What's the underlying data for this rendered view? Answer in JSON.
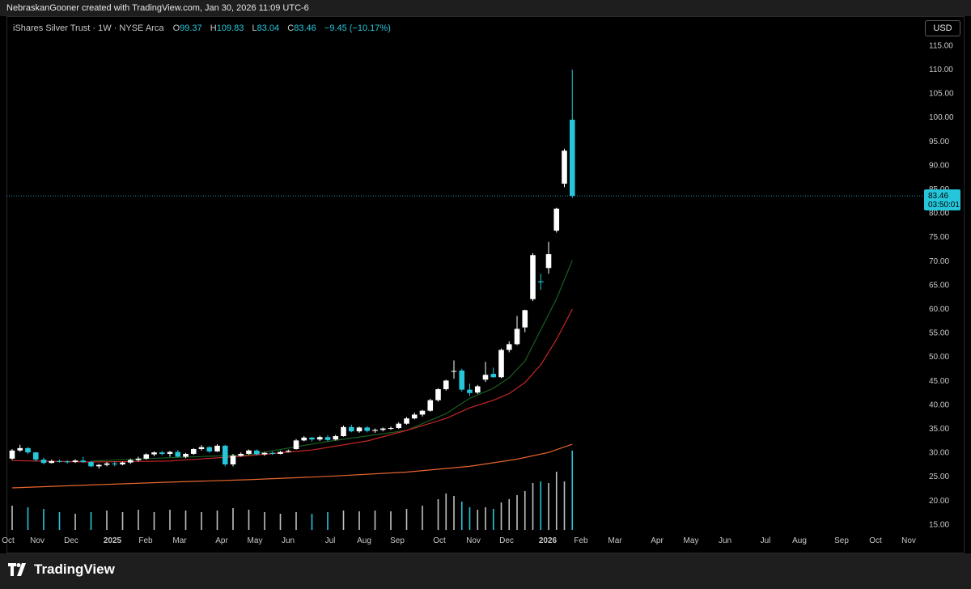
{
  "header": {
    "attribution": "NebraskanGooner created with TradingView.com, Jan 30, 2026 11:09 UTC-6"
  },
  "legend": {
    "symbol": "iShares Silver Trust · 1W · NYSE Arca",
    "open_label": "O",
    "open": "99.37",
    "high_label": "H",
    "high": "109.83",
    "low_label": "L",
    "low": "83.04",
    "close_label": "C",
    "close": "83.46",
    "change": "−9.45 (−10.17%)"
  },
  "currency": "USD",
  "price_tag": {
    "price": "83.46",
    "countdown": "03:50:01"
  },
  "brand": {
    "name": "TradingView"
  },
  "colors": {
    "up_candle": "#ffffff",
    "down_candle": "#26c6da",
    "ma_green": "#1b5e20",
    "ma_red": "#c62828",
    "ma_orange": "#e8652d",
    "volume": "#26c6da",
    "volume_up": "#ffffff"
  },
  "chart_data": {
    "type": "candlestick",
    "title": "iShares Silver Trust · 1W · NYSE Arca",
    "x_tick_labels": [
      "Oct",
      "Nov",
      "Dec",
      "2025",
      "Feb",
      "Mar",
      "Apr",
      "May",
      "Jun",
      "Jul",
      "Aug",
      "Sep",
      "Oct",
      "Nov",
      "Dec",
      "2026",
      "Feb",
      "Mar",
      "Apr",
      "May",
      "Jun",
      "Jul",
      "Aug",
      "Sep",
      "Oct",
      "Nov"
    ],
    "y_tick_labels": [
      "15.00",
      "20.00",
      "25.00",
      "30.00",
      "35.00",
      "40.00",
      "45.00",
      "50.00",
      "55.00",
      "60.00",
      "65.00",
      "70.00",
      "75.00",
      "80.00",
      "85.00",
      "90.00",
      "95.00",
      "100.00",
      "105.00",
      "110.00",
      "115.00"
    ],
    "ylim": [
      14,
      117
    ],
    "grid": false,
    "candles": [
      {
        "o": 28.6,
        "h": 30.6,
        "l": 28.3,
        "c": 30.3
      },
      {
        "o": 30.3,
        "h": 31.5,
        "l": 30.0,
        "c": 30.8
      },
      {
        "o": 30.8,
        "h": 31.0,
        "l": 29.6,
        "c": 29.9
      },
      {
        "o": 29.9,
        "h": 30.0,
        "l": 28.0,
        "c": 28.4
      },
      {
        "o": 28.4,
        "h": 28.8,
        "l": 27.4,
        "c": 27.7
      },
      {
        "o": 27.7,
        "h": 28.4,
        "l": 27.6,
        "c": 28.1
      },
      {
        "o": 28.1,
        "h": 28.4,
        "l": 27.8,
        "c": 28.0
      },
      {
        "o": 28.0,
        "h": 28.3,
        "l": 27.6,
        "c": 27.9
      },
      {
        "o": 27.9,
        "h": 28.5,
        "l": 27.7,
        "c": 28.2
      },
      {
        "o": 28.2,
        "h": 29.0,
        "l": 27.7,
        "c": 27.9
      },
      {
        "o": 27.9,
        "h": 28.1,
        "l": 26.8,
        "c": 27.0
      },
      {
        "o": 27.0,
        "h": 27.5,
        "l": 26.5,
        "c": 27.3
      },
      {
        "o": 27.3,
        "h": 27.9,
        "l": 27.0,
        "c": 27.6
      },
      {
        "o": 27.6,
        "h": 28.0,
        "l": 27.0,
        "c": 27.4
      },
      {
        "o": 27.4,
        "h": 28.0,
        "l": 27.2,
        "c": 27.8
      },
      {
        "o": 27.8,
        "h": 28.6,
        "l": 27.5,
        "c": 28.3
      },
      {
        "o": 28.3,
        "h": 29.0,
        "l": 28.0,
        "c": 28.6
      },
      {
        "o": 28.6,
        "h": 29.7,
        "l": 28.4,
        "c": 29.5
      },
      {
        "o": 29.5,
        "h": 30.1,
        "l": 29.1,
        "c": 29.9
      },
      {
        "o": 29.9,
        "h": 30.2,
        "l": 29.3,
        "c": 29.6
      },
      {
        "o": 29.6,
        "h": 30.2,
        "l": 29.0,
        "c": 30.0
      },
      {
        "o": 30.0,
        "h": 30.4,
        "l": 28.9,
        "c": 29.0
      },
      {
        "o": 29.0,
        "h": 29.8,
        "l": 28.7,
        "c": 29.6
      },
      {
        "o": 29.6,
        "h": 30.8,
        "l": 29.4,
        "c": 30.6
      },
      {
        "o": 30.6,
        "h": 31.4,
        "l": 30.3,
        "c": 31.0
      },
      {
        "o": 31.0,
        "h": 31.2,
        "l": 29.8,
        "c": 30.1
      },
      {
        "o": 30.1,
        "h": 31.6,
        "l": 30.0,
        "c": 31.3
      },
      {
        "o": 31.3,
        "h": 31.5,
        "l": 27.0,
        "c": 27.4
      },
      {
        "o": 27.4,
        "h": 29.6,
        "l": 27.0,
        "c": 29.2
      },
      {
        "o": 29.2,
        "h": 29.9,
        "l": 29.0,
        "c": 29.6
      },
      {
        "o": 29.6,
        "h": 30.5,
        "l": 29.4,
        "c": 30.3
      },
      {
        "o": 30.3,
        "h": 30.5,
        "l": 29.3,
        "c": 29.5
      },
      {
        "o": 29.5,
        "h": 30.0,
        "l": 29.2,
        "c": 29.8
      },
      {
        "o": 29.8,
        "h": 30.1,
        "l": 29.4,
        "c": 29.6
      },
      {
        "o": 29.6,
        "h": 30.2,
        "l": 29.5,
        "c": 30.0
      },
      {
        "o": 30.0,
        "h": 30.5,
        "l": 29.9,
        "c": 30.2
      },
      {
        "o": 30.6,
        "h": 32.7,
        "l": 30.5,
        "c": 32.4
      },
      {
        "o": 32.4,
        "h": 33.3,
        "l": 32.2,
        "c": 33.0
      },
      {
        "o": 33.0,
        "h": 33.1,
        "l": 32.2,
        "c": 32.6
      },
      {
        "o": 32.6,
        "h": 33.4,
        "l": 32.3,
        "c": 33.1
      },
      {
        "o": 33.1,
        "h": 33.5,
        "l": 32.2,
        "c": 32.5
      },
      {
        "o": 32.6,
        "h": 33.6,
        "l": 32.4,
        "c": 33.3
      },
      {
        "o": 33.3,
        "h": 35.5,
        "l": 33.2,
        "c": 35.2
      },
      {
        "o": 35.2,
        "h": 35.7,
        "l": 34.1,
        "c": 34.3
      },
      {
        "o": 34.3,
        "h": 35.3,
        "l": 34.0,
        "c": 35.1
      },
      {
        "o": 35.1,
        "h": 35.4,
        "l": 34.1,
        "c": 34.4
      },
      {
        "o": 34.4,
        "h": 34.9,
        "l": 34.0,
        "c": 34.6
      },
      {
        "o": 34.6,
        "h": 35.1,
        "l": 34.3,
        "c": 34.9
      },
      {
        "o": 34.9,
        "h": 35.3,
        "l": 34.6,
        "c": 35.0
      },
      {
        "o": 35.0,
        "h": 36.2,
        "l": 34.8,
        "c": 35.9
      },
      {
        "o": 35.9,
        "h": 37.3,
        "l": 35.7,
        "c": 37.0
      },
      {
        "o": 37.0,
        "h": 38.2,
        "l": 36.8,
        "c": 37.8
      },
      {
        "o": 37.8,
        "h": 38.8,
        "l": 37.4,
        "c": 38.6
      },
      {
        "o": 38.6,
        "h": 41.1,
        "l": 38.4,
        "c": 40.8
      },
      {
        "o": 40.8,
        "h": 43.3,
        "l": 40.5,
        "c": 43.1
      },
      {
        "o": 43.1,
        "h": 45.1,
        "l": 42.8,
        "c": 44.9
      },
      {
        "o": 46.8,
        "h": 49.1,
        "l": 45.3,
        "c": 46.9
      },
      {
        "o": 47.0,
        "h": 47.4,
        "l": 42.6,
        "c": 43.0
      },
      {
        "o": 43.0,
        "h": 44.3,
        "l": 41.7,
        "c": 42.3
      },
      {
        "o": 42.4,
        "h": 44.0,
        "l": 42.1,
        "c": 43.7
      },
      {
        "o": 45.1,
        "h": 48.8,
        "l": 44.6,
        "c": 46.1
      },
      {
        "o": 46.3,
        "h": 47.6,
        "l": 45.5,
        "c": 45.6
      },
      {
        "o": 45.6,
        "h": 51.6,
        "l": 45.4,
        "c": 51.3
      },
      {
        "o": 51.3,
        "h": 53.1,
        "l": 50.8,
        "c": 52.5
      },
      {
        "o": 52.5,
        "h": 58.4,
        "l": 52.3,
        "c": 55.7
      },
      {
        "o": 56.0,
        "h": 59.7,
        "l": 55.0,
        "c": 59.6
      },
      {
        "o": 61.9,
        "h": 71.5,
        "l": 61.5,
        "c": 71.1
      },
      {
        "o": 65.6,
        "h": 67.2,
        "l": 63.8,
        "c": 65.4
      },
      {
        "o": 68.4,
        "h": 73.9,
        "l": 67.2,
        "c": 71.3
      },
      {
        "o": 76.2,
        "h": 81.0,
        "l": 75.8,
        "c": 80.8
      },
      {
        "o": 86.0,
        "h": 93.3,
        "l": 85.3,
        "c": 92.9
      },
      {
        "o": 99.37,
        "h": 109.83,
        "l": 83.04,
        "c": 83.46
      }
    ],
    "series": [
      {
        "name": "",
        "color": "green",
        "values": [
          {
            "i": 10,
            "v": 28.1
          },
          {
            "i": 20,
            "v": 28.8
          },
          {
            "i": 30,
            "v": 29.4
          },
          {
            "i": 40,
            "v": 32.2
          },
          {
            "i": 50,
            "v": 34.5
          },
          {
            "i": 55,
            "v": 38.0
          },
          {
            "i": 58,
            "v": 41.2
          },
          {
            "i": 61,
            "v": 43.3
          },
          {
            "i": 63,
            "v": 45.5
          },
          {
            "i": 65,
            "v": 49.0
          },
          {
            "i": 67,
            "v": 55.5
          },
          {
            "i": 69,
            "v": 62.0
          },
          {
            "i": 71,
            "v": 70.0
          }
        ]
      },
      {
        "name": "",
        "color": "red",
        "values": [
          {
            "i": 0,
            "v": 28.2
          },
          {
            "i": 10,
            "v": 27.9
          },
          {
            "i": 20,
            "v": 28.1
          },
          {
            "i": 30,
            "v": 29.2
          },
          {
            "i": 38,
            "v": 30.4
          },
          {
            "i": 45,
            "v": 32.3
          },
          {
            "i": 50,
            "v": 34.5
          },
          {
            "i": 55,
            "v": 37.0
          },
          {
            "i": 58,
            "v": 39.2
          },
          {
            "i": 61,
            "v": 40.8
          },
          {
            "i": 63,
            "v": 42.2
          },
          {
            "i": 65,
            "v": 44.5
          },
          {
            "i": 67,
            "v": 48.2
          },
          {
            "i": 69,
            "v": 53.5
          },
          {
            "i": 71,
            "v": 59.8
          }
        ]
      },
      {
        "name": "",
        "color": "orange",
        "values": [
          {
            "i": 0,
            "v": 22.5
          },
          {
            "i": 10,
            "v": 23.1
          },
          {
            "i": 20,
            "v": 23.7
          },
          {
            "i": 30,
            "v": 24.2
          },
          {
            "i": 40,
            "v": 24.9
          },
          {
            "i": 50,
            "v": 25.8
          },
          {
            "i": 58,
            "v": 27.0
          },
          {
            "i": 64,
            "v": 28.5
          },
          {
            "i": 68,
            "v": 29.9
          },
          {
            "i": 71,
            "v": 31.6
          }
        ]
      }
    ],
    "volume": [
      {
        "i": 0,
        "h": 30
      },
      {
        "i": 2,
        "h": 28
      },
      {
        "i": 4,
        "h": 26
      },
      {
        "i": 6,
        "h": 22
      },
      {
        "i": 8,
        "h": 20
      },
      {
        "i": 10,
        "h": 22
      },
      {
        "i": 12,
        "h": 24
      },
      {
        "i": 14,
        "h": 22
      },
      {
        "i": 16,
        "h": 25
      },
      {
        "i": 18,
        "h": 22
      },
      {
        "i": 20,
        "h": 25
      },
      {
        "i": 22,
        "h": 24
      },
      {
        "i": 24,
        "h": 22
      },
      {
        "i": 26,
        "h": 24
      },
      {
        "i": 28,
        "h": 27
      },
      {
        "i": 30,
        "h": 25
      },
      {
        "i": 32,
        "h": 22
      },
      {
        "i": 34,
        "h": 20
      },
      {
        "i": 36,
        "h": 22
      },
      {
        "i": 38,
        "h": 20
      },
      {
        "i": 40,
        "h": 22
      },
      {
        "i": 42,
        "h": 24
      },
      {
        "i": 44,
        "h": 23
      },
      {
        "i": 46,
        "h": 24
      },
      {
        "i": 48,
        "h": 23
      },
      {
        "i": 50,
        "h": 26
      },
      {
        "i": 52,
        "h": 30
      },
      {
        "i": 54,
        "h": 38
      },
      {
        "i": 55,
        "h": 45
      },
      {
        "i": 56,
        "h": 42
      },
      {
        "i": 57,
        "h": 35
      },
      {
        "i": 58,
        "h": 28
      },
      {
        "i": 59,
        "h": 25
      },
      {
        "i": 60,
        "h": 28
      },
      {
        "i": 61,
        "h": 26
      },
      {
        "i": 62,
        "h": 34
      },
      {
        "i": 63,
        "h": 38
      },
      {
        "i": 64,
        "h": 43
      },
      {
        "i": 65,
        "h": 48
      },
      {
        "i": 66,
        "h": 58
      },
      {
        "i": 67,
        "h": 60
      },
      {
        "i": 68,
        "h": 58
      },
      {
        "i": 69,
        "h": 72
      },
      {
        "i": 70,
        "h": 60
      },
      {
        "i": 71,
        "h": 98
      }
    ]
  }
}
